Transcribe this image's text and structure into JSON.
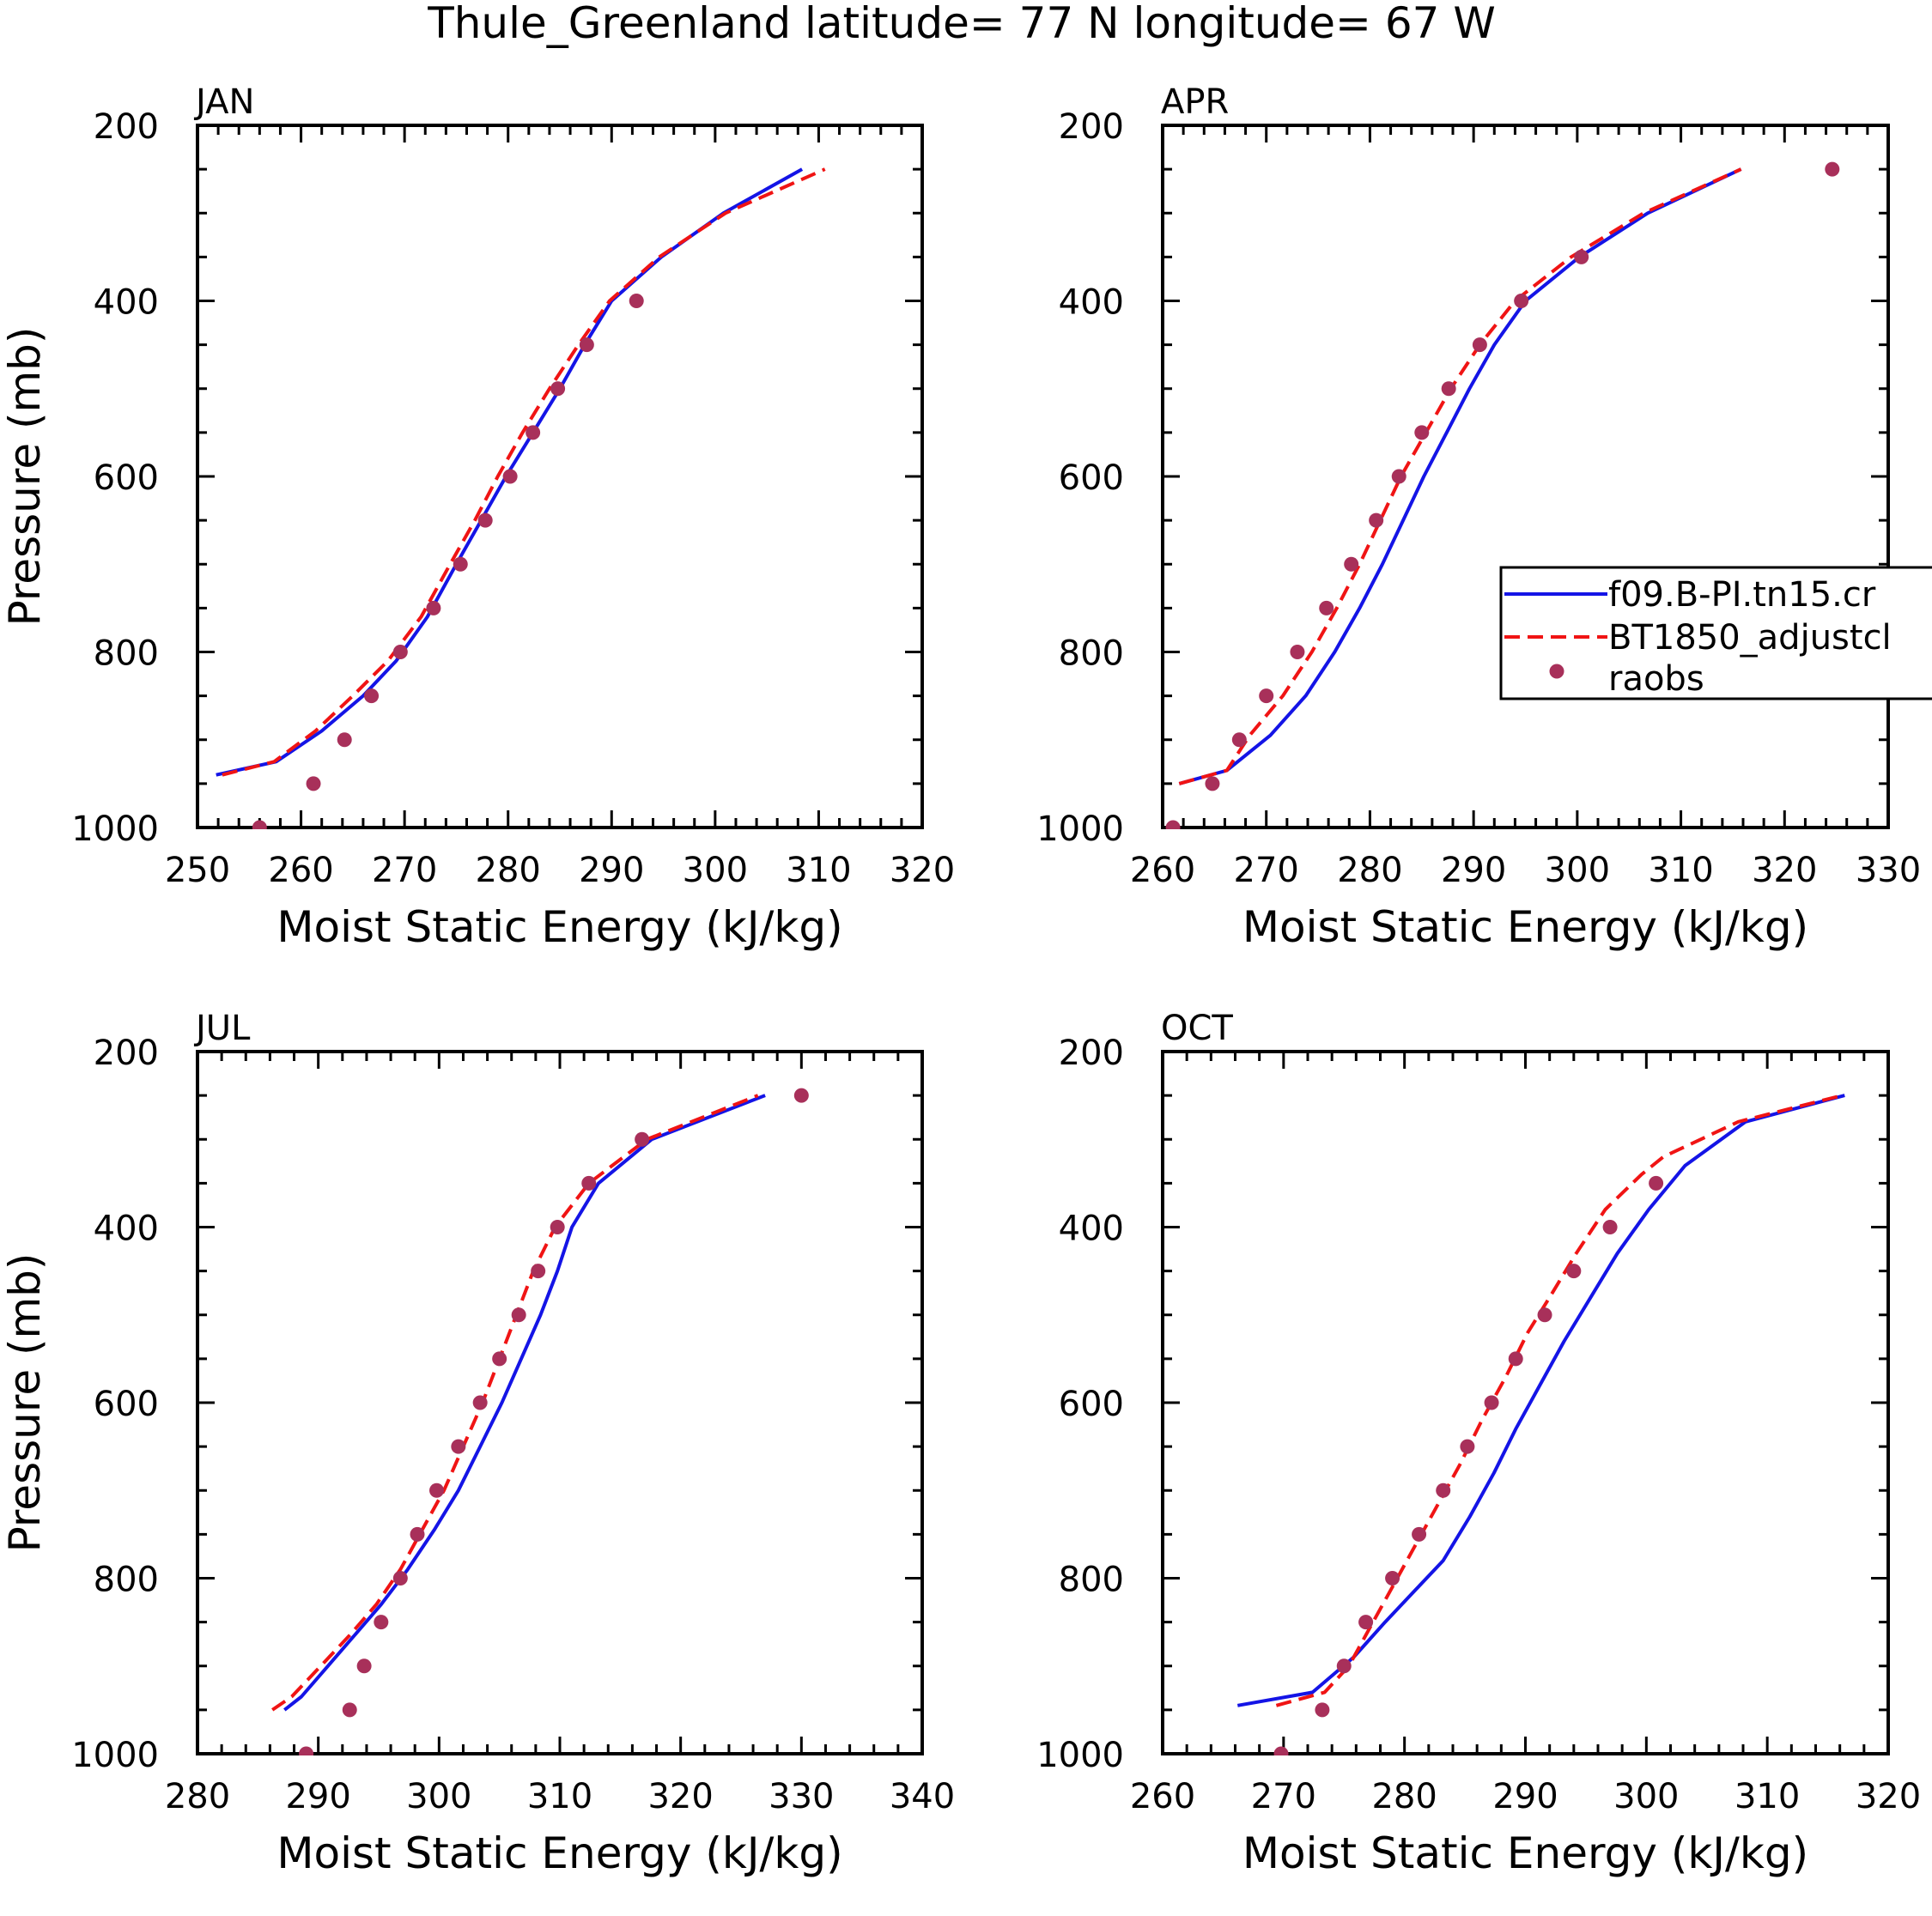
{
  "title": "Thule_Greenland  latitude= 77 N longitude= 67 W",
  "colors": {
    "model_blue": "#1414e6",
    "adjust_red": "#f01414",
    "raobs_dot": "#a8305a",
    "axis": "#000000"
  },
  "legend": {
    "entries": [
      {
        "label": "f09.B-PI.tn15.cr",
        "style": "solid",
        "color": "#1414e6"
      },
      {
        "label": "BT1850_adjustcl",
        "style": "dashed",
        "color": "#f01414"
      },
      {
        "label": "raobs",
        "style": "dot",
        "color": "#a8305a"
      }
    ]
  },
  "chart_data": [
    {
      "type": "line",
      "panel": "JAN",
      "xlabel": "Moist Static Energy (kJ/kg)",
      "ylabel": "Pressure (mb)",
      "xlim": [
        250,
        320
      ],
      "ylim": [
        1000,
        200
      ],
      "xticks": [
        250,
        260,
        270,
        280,
        290,
        300,
        310,
        320
      ],
      "yticks": [
        200,
        400,
        600,
        800,
        1000
      ],
      "series": [
        {
          "name": "f09.B-PI.tn15.cr",
          "style": "solid",
          "x": [
            251.8,
            257.6,
            262.0,
            266.0,
            269.2,
            272.2,
            275.0,
            277.4,
            279.8,
            282.4,
            285.0,
            287.4,
            290.0,
            294.8,
            300.8,
            308.4
          ],
          "y": [
            940,
            925,
            890,
            850,
            810,
            760,
            700,
            650,
            600,
            550,
            500,
            450,
            400,
            350,
            300,
            250
          ]
        },
        {
          "name": "BT1850_adjustcl",
          "style": "dashed",
          "x": [
            252.4,
            257.4,
            261.4,
            265.0,
            268.4,
            271.6,
            274.4,
            276.8,
            279.0,
            281.4,
            284.0,
            286.8,
            289.8,
            294.6,
            301.0,
            310.6
          ],
          "y": [
            940,
            925,
            890,
            850,
            810,
            760,
            700,
            650,
            600,
            550,
            500,
            450,
            400,
            350,
            300,
            250
          ]
        },
        {
          "name": "raobs",
          "style": "dot",
          "x": [
            256.0,
            261.2,
            264.2,
            266.8,
            269.6,
            272.8,
            275.4,
            277.8,
            280.2,
            282.4,
            284.8,
            287.6,
            292.4
          ],
          "y": [
            1000,
            950,
            900,
            850,
            800,
            750,
            700,
            650,
            600,
            550,
            500,
            450,
            400
          ]
        }
      ]
    },
    {
      "type": "line",
      "panel": "APR",
      "xlabel": "Moist Static Energy (kJ/kg)",
      "ylabel": "",
      "xlim": [
        260,
        330
      ],
      "ylim": [
        1000,
        200
      ],
      "xticks": [
        260,
        270,
        280,
        290,
        300,
        310,
        320,
        330
      ],
      "yticks": [
        200,
        400,
        600,
        800,
        1000
      ],
      "series": [
        {
          "name": "f09.B-PI.tn15.cr",
          "style": "solid",
          "x": [
            261.6,
            266.2,
            270.4,
            273.8,
            276.6,
            279.0,
            281.2,
            283.2,
            285.2,
            287.4,
            289.6,
            292.0,
            295.0,
            300.2,
            306.8,
            315.8
          ],
          "y": [
            950,
            935,
            895,
            850,
            800,
            750,
            700,
            650,
            600,
            550,
            500,
            450,
            400,
            350,
            300,
            250
          ]
        },
        {
          "name": "BT1850_adjustcl",
          "style": "dashed",
          "x": [
            261.6,
            266.2,
            268.4,
            271.6,
            274.4,
            276.8,
            279.0,
            281.0,
            283.0,
            285.4,
            287.8,
            290.6,
            294.0,
            299.4,
            306.4,
            315.8
          ],
          "y": [
            950,
            935,
            895,
            850,
            800,
            750,
            700,
            650,
            600,
            550,
            500,
            450,
            400,
            350,
            300,
            250
          ]
        },
        {
          "name": "raobs",
          "style": "dot",
          "x": [
            261.0,
            264.8,
            267.4,
            270.0,
            273.0,
            275.8,
            278.2,
            280.6,
            282.8,
            285.0,
            287.6,
            290.6,
            294.6,
            300.4,
            324.6
          ],
          "y": [
            1000,
            950,
            900,
            850,
            800,
            750,
            700,
            650,
            600,
            550,
            500,
            450,
            400,
            350,
            250
          ]
        }
      ]
    },
    {
      "type": "line",
      "panel": "JUL",
      "xlabel": "Moist Static Energy (kJ/kg)",
      "ylabel": "Pressure (mb)",
      "xlim": [
        280,
        340
      ],
      "ylim": [
        1000,
        200
      ],
      "xticks": [
        280,
        290,
        300,
        310,
        320,
        330,
        340
      ],
      "yticks": [
        200,
        400,
        600,
        800,
        1000
      ],
      "series": [
        {
          "name": "f09.B-PI.tn15.cr",
          "style": "solid",
          "x": [
            287.2,
            288.6,
            290.8,
            293.0,
            295.2,
            297.4,
            299.6,
            301.6,
            303.4,
            305.2,
            306.8,
            308.4,
            309.8,
            311.0,
            313.2,
            317.6,
            327.0
          ],
          "y": [
            950,
            935,
            900,
            865,
            830,
            790,
            745,
            700,
            650,
            600,
            550,
            500,
            450,
            400,
            350,
            300,
            250
          ]
        },
        {
          "name": "BT1850_adjustcl",
          "style": "dashed",
          "x": [
            286.2,
            287.8,
            290.2,
            292.6,
            294.8,
            296.8,
            298.6,
            300.4,
            302.0,
            303.6,
            305.0,
            306.4,
            307.8,
            309.6,
            312.4,
            317.2,
            326.4
          ],
          "y": [
            950,
            935,
            900,
            865,
            830,
            790,
            745,
            700,
            650,
            600,
            550,
            500,
            450,
            400,
            350,
            300,
            250
          ]
        },
        {
          "name": "raobs",
          "style": "dot",
          "x": [
            289.0,
            292.6,
            293.8,
            295.2,
            296.8,
            298.2,
            299.8,
            301.6,
            303.4,
            305.0,
            306.6,
            308.2,
            309.8,
            312.4,
            316.8,
            330.0
          ],
          "y": [
            1000,
            950,
            900,
            850,
            800,
            750,
            700,
            650,
            600,
            550,
            500,
            450,
            400,
            350,
            300,
            250
          ]
        }
      ]
    },
    {
      "type": "line",
      "panel": "OCT",
      "xlabel": "Moist Static Energy (kJ/kg)",
      "ylabel": "",
      "xlim": [
        260,
        320
      ],
      "ylim": [
        1000,
        200
      ],
      "xticks": [
        260,
        270,
        280,
        290,
        300,
        310,
        320
      ],
      "yticks": [
        200,
        400,
        600,
        800,
        1000
      ],
      "series": [
        {
          "name": "f09.B-PI.tn15.cr",
          "style": "solid",
          "x": [
            266.2,
            272.4,
            275.8,
            278.4,
            280.8,
            283.2,
            285.4,
            287.4,
            289.2,
            291.2,
            293.2,
            295.4,
            297.6,
            300.2,
            303.2,
            308.2,
            316.4
          ],
          "y": [
            945,
            930,
            890,
            850,
            815,
            780,
            730,
            680,
            630,
            580,
            530,
            480,
            430,
            380,
            330,
            280,
            250
          ]
        },
        {
          "name": "BT1850_adjustcl",
          "style": "dashed",
          "x": [
            269.4,
            273.4,
            275.4,
            277.2,
            279.0,
            280.8,
            282.6,
            284.6,
            286.4,
            288.4,
            290.2,
            292.0,
            294.2,
            296.6,
            299.6,
            301.4,
            307.6,
            316.2
          ],
          "y": [
            945,
            930,
            900,
            855,
            810,
            765,
            720,
            670,
            620,
            570,
            520,
            480,
            430,
            380,
            340,
            320,
            280,
            250
          ]
        },
        {
          "name": "raobs",
          "style": "dot",
          "x": [
            269.8,
            273.2,
            275.0,
            276.8,
            279.0,
            281.2,
            283.2,
            285.2,
            287.2,
            289.2,
            291.6,
            294.0,
            297.0,
            300.8
          ],
          "y": [
            1000,
            950,
            900,
            850,
            800,
            750,
            700,
            650,
            600,
            550,
            500,
            450,
            400,
            350
          ]
        }
      ]
    }
  ]
}
